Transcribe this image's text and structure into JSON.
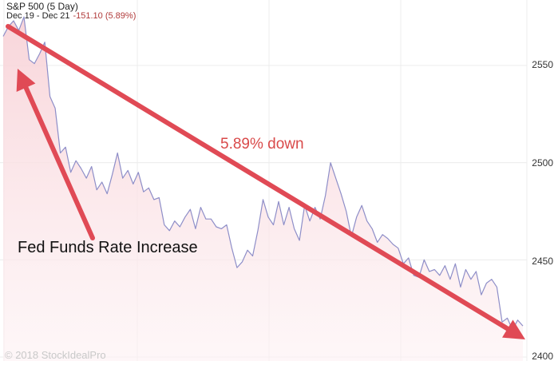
{
  "header": {
    "title": "S&P 500 (5 Day)",
    "range": "Dec 19 - Dec 21",
    "change": "-151.10 (5.89%)"
  },
  "annotations": {
    "trend_label": "5.89% down",
    "event_label": "Fed Funds Rate Increase"
  },
  "watermark": "© 2018 StockIdealPro",
  "colors": {
    "line": "#8e8ec8",
    "fill": "#fbe3e6",
    "arrow": "#e04a55",
    "change": "#b03a3a"
  },
  "chart_data": {
    "type": "area",
    "title": "S&P 500 (5 Day)",
    "xlabel": "",
    "ylabel": "",
    "ylim": [
      2400,
      2580
    ],
    "yticks": [
      "2550",
      "2500",
      "2450",
      "2400"
    ],
    "ytick_values": [
      2550,
      2500,
      2450,
      2400
    ],
    "grid": true,
    "x_range": [
      0,
      100
    ],
    "x": [
      0,
      1,
      2,
      3,
      4,
      5,
      6,
      7,
      8,
      9,
      10,
      11,
      12,
      13,
      14,
      15,
      16,
      17,
      18,
      19,
      20,
      21,
      22,
      23,
      24,
      25,
      26,
      27,
      28,
      29,
      30,
      31,
      32,
      33,
      34,
      35,
      36,
      37,
      38,
      39,
      40,
      41,
      42,
      43,
      44,
      45,
      46,
      47,
      48,
      49,
      50,
      51,
      52,
      53,
      54,
      55,
      56,
      57,
      58,
      59,
      60,
      61,
      62,
      63,
      64,
      65,
      66,
      67,
      68,
      69,
      70,
      71,
      72,
      73,
      74,
      75,
      76,
      77,
      78,
      79,
      80,
      81,
      82,
      83,
      84,
      85,
      86,
      87,
      88,
      89,
      90,
      91,
      92,
      93,
      94,
      95,
      96,
      97,
      98,
      99,
      100
    ],
    "values": [
      2565,
      2570,
      2573,
      2568,
      2575,
      2553,
      2551,
      2556,
      2562,
      2534,
      2528,
      2505,
      2508,
      2495,
      2501,
      2497,
      2492,
      2498,
      2486,
      2490,
      2484,
      2494,
      2505,
      2492,
      2496,
      2489,
      2495,
      2485,
      2487,
      2481,
      2482,
      2468,
      2465,
      2470,
      2467,
      2472,
      2476,
      2466,
      2477,
      2471,
      2471,
      2467,
      2466,
      2468,
      2456,
      2446,
      2449,
      2455,
      2452,
      2465,
      2481,
      2472,
      2468,
      2480,
      2468,
      2477,
      2466,
      2460,
      2478,
      2470,
      2477,
      2471,
      2483,
      2500,
      2492,
      2484,
      2475,
      2462,
      2472,
      2478,
      2470,
      2466,
      2459,
      2463,
      2461,
      2458,
      2456,
      2448,
      2451,
      2442,
      2441,
      2450,
      2444,
      2445,
      2442,
      2447,
      2440,
      2448,
      2436,
      2445,
      2440,
      2444,
      2432,
      2438,
      2440,
      2436,
      2418,
      2420,
      2414,
      2419,
      2416
    ]
  }
}
